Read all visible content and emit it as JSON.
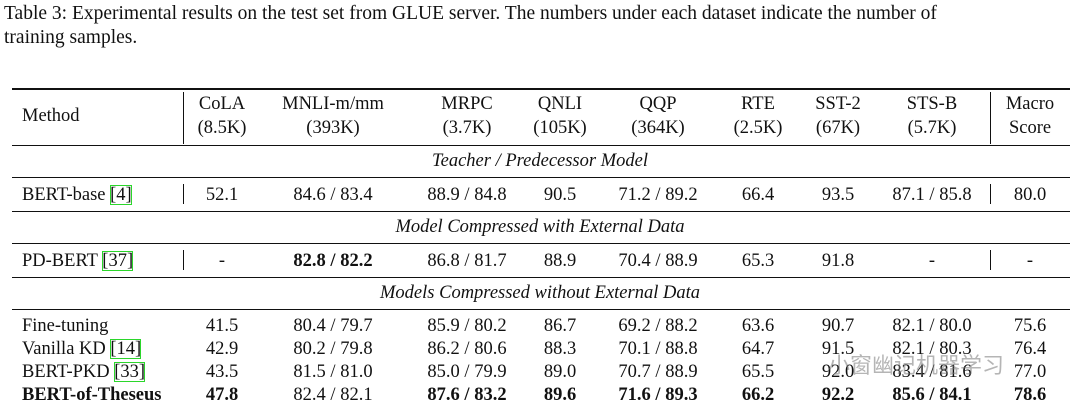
{
  "caption": [
    "Table 3: Experimental results on the test set from GLUE server. The numbers under each dataset indicate the number of",
    "training samples."
  ],
  "columns": [
    {
      "name": "Method"
    },
    {
      "name": "CoLA",
      "size": "(8.5K)"
    },
    {
      "name": "MNLI-m/mm",
      "size": "(393K)"
    },
    {
      "name": "MRPC",
      "size": "(3.7K)"
    },
    {
      "name": "QNLI",
      "size": "(105K)"
    },
    {
      "name": "QQP",
      "size": "(364K)"
    },
    {
      "name": "RTE",
      "size": "(2.5K)"
    },
    {
      "name": "SST-2",
      "size": "(67K)"
    },
    {
      "name": "STS-B",
      "size": "(5.7K)"
    },
    {
      "name": "Macro",
      "size": "Score"
    }
  ],
  "sections": [
    {
      "title": "Teacher / Predecessor Model",
      "rows": [
        {
          "method": "BERT-base",
          "ref": "[4]",
          "cells": [
            "52.1",
            "84.6 / 83.4",
            "88.9 / 84.8",
            "90.5",
            "71.2 / 89.2",
            "66.4",
            "93.5",
            "87.1 / 85.8",
            "80.0"
          ],
          "bold": []
        }
      ]
    },
    {
      "title": "Model Compressed with External Data",
      "rows": [
        {
          "method": "PD-BERT",
          "ref": "[37]",
          "cells": [
            "-",
            "82.8 / 82.2",
            "86.8 / 81.7",
            "88.9",
            "70.4 / 88.9",
            "65.3",
            "91.8",
            "-",
            "-"
          ],
          "bold": [
            1
          ]
        }
      ]
    },
    {
      "title": "Models Compressed without External Data",
      "rows": [
        {
          "method": "Fine-tuning",
          "cells": [
            "41.5",
            "80.4 / 79.7",
            "85.9 / 80.2",
            "86.7",
            "69.2 / 88.2",
            "63.6",
            "90.7",
            "82.1 / 80.0",
            "75.6"
          ],
          "bold": []
        },
        {
          "method": "Vanilla KD",
          "ref": "[14]",
          "cells": [
            "42.9",
            "80.2 / 79.8",
            "86.2 / 80.6",
            "88.3",
            "70.1 / 88.8",
            "64.7",
            "91.5",
            "82.1 / 80.3",
            "76.4"
          ],
          "bold": []
        },
        {
          "method": "BERT-PKD",
          "ref": "[33]",
          "cells": [
            "43.5",
            "81.5 / 81.0",
            "85.0 / 79.9",
            "89.0",
            "70.7 / 88.9",
            "65.5",
            "92.0",
            "83.4 / 81.6",
            "77.0"
          ],
          "bold": []
        },
        {
          "method": "BERT-of-Theseus",
          "cells": [
            "47.8",
            "82.4 / 82.1",
            "87.6 / 83.2",
            "89.6",
            "71.6 / 89.3",
            "66.2",
            "92.2",
            "85.6 / 84.1",
            "78.6"
          ],
          "bold": [
            0,
            2,
            3,
            4,
            5,
            6,
            7,
            8
          ],
          "method_bold": true
        }
      ]
    }
  ],
  "watermark": "小窗幽记机器学习"
}
